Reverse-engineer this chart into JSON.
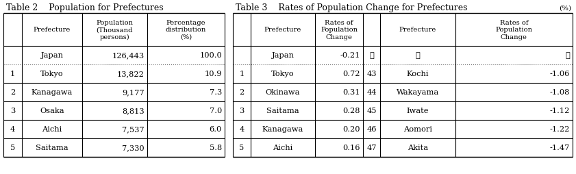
{
  "table2_title": "Table 2    Population for Prefectures",
  "table3_title": "Table 3    Rates of Population Change for Prefectures",
  "table3_unit": "(%)",
  "table2_col_headers": [
    "",
    "Prefecture",
    "Population\n(Thousand\npersons)",
    "Percentage\ndistribution\n(%)"
  ],
  "table2_rows": [
    [
      "",
      "Japan",
      "126,443",
      "100.0"
    ],
    [
      "1",
      "Tokyo",
      "13,822",
      "10.9"
    ],
    [
      "2",
      "Kanagawa",
      "9,177",
      "7.3"
    ],
    [
      "3",
      "Osaka",
      "8,813",
      "7.0"
    ],
    [
      "4",
      "Aichi",
      "7,537",
      "6.0"
    ],
    [
      "5",
      "Saitama",
      "7,330",
      "5.8"
    ]
  ],
  "table3_rows": [
    [
      "",
      "Japan",
      "-0.21",
      "⋮",
      "⋮",
      "⋮"
    ],
    [
      "1",
      "Tokyo",
      "0.72",
      "43",
      "Kochi",
      "-1.06"
    ],
    [
      "2",
      "Okinawa",
      "0.31",
      "44",
      "Wakayama",
      "-1.08"
    ],
    [
      "3",
      "Saitama",
      "0.28",
      "45",
      "Iwate",
      "-1.12"
    ],
    [
      "4",
      "Kanagawa",
      "0.20",
      "46",
      "Aomori",
      "-1.22"
    ],
    [
      "5",
      "Aichi",
      "0.16",
      "47",
      "Akita",
      "-1.47"
    ]
  ],
  "bg_color": "#ffffff",
  "text_color": "#000000",
  "line_color": "#000000"
}
